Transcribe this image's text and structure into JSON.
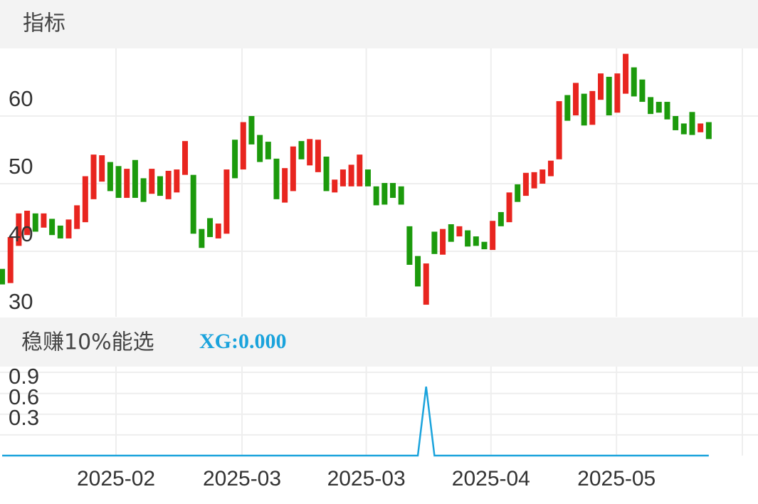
{
  "chart_data": [
    {
      "type": "candlestick",
      "title": "指标",
      "ylim": [
        30,
        70
      ],
      "yticks": [
        30,
        40,
        50,
        60
      ],
      "grid": true,
      "up_color": "#e8251f",
      "down_color": "#1c9a0c",
      "series": [
        {
          "open": [
            37.4,
            35.3,
            40.8,
            42.4,
            45.6,
            43.5,
            44.8,
            43.8,
            41.9,
            43.3,
            44.3,
            47.7,
            50.3,
            53.2,
            52.6,
            47.9,
            53.5,
            50.8,
            48.5,
            51.1,
            47.7,
            48.7,
            51.3,
            51.3,
            43.3,
            44.9,
            41.9,
            42.6,
            56.5,
            52.1,
            60.0,
            57.2,
            56.2,
            53.7,
            47.2,
            48.9,
            56.3,
            52.7,
            51.7,
            54.0,
            48.7,
            49.6,
            49.6,
            49.6,
            52.1,
            49.6,
            50.1,
            50.1,
            49.6,
            43.7,
            39.3,
            32.1,
            42.9,
            39.5,
            44.0,
            42.2,
            43.1,
            42.2,
            41.4,
            40.2,
            45.8,
            44.3,
            49.9,
            48.2,
            49.3,
            50.0,
            51.1,
            53.6,
            63.1,
            60.1,
            63.3,
            58.7,
            62.4,
            65.8,
            60.5,
            63.3,
            67.2,
            65.4,
            62.8,
            62.1,
            62.1,
            60.0,
            58.9,
            60.6,
            57.6,
            59.1
          ],
          "close": [
            35.1,
            42.1,
            45.6,
            46.0,
            42.9,
            45.6,
            42.4,
            41.9,
            44.7,
            46.8,
            51.1,
            54.3,
            54.2,
            48.9,
            47.9,
            52.2,
            47.9,
            47.3,
            52.2,
            48.2,
            51.9,
            52.1,
            56.3,
            42.6,
            40.5,
            42.1,
            44.1,
            52.1,
            50.8,
            59.1,
            55.8,
            53.2,
            53.6,
            47.7,
            52.3,
            55.5,
            53.6,
            56.6,
            56.5,
            48.9,
            50.6,
            52.1,
            52.8,
            54.3,
            49.6,
            46.8,
            46.9,
            47.9,
            46.9,
            38.0,
            34.8,
            38.2,
            39.6,
            43.3,
            41.4,
            43.7,
            40.7,
            40.8,
            40.3,
            44.5,
            43.7,
            48.7,
            47.3,
            51.6,
            51.7,
            52.1,
            53.4,
            62.2,
            59.3,
            64.9,
            58.6,
            63.7,
            66.3,
            60.1,
            66.3,
            69.2,
            62.9,
            62.1,
            60.3,
            60.5,
            59.5,
            57.9,
            57.3,
            57.2,
            58.9,
            56.6
          ]
        }
      ]
    },
    {
      "type": "line",
      "title": "稳赚10%能选",
      "ylim": [
        0,
        1.29
      ],
      "yticks": [
        0.3,
        0.6,
        0.9
      ],
      "grid": true,
      "xlim": [
        -0.26,
        90.92
      ],
      "xticks": [
        {
          "value": 13.7,
          "label": "2025-02"
        },
        {
          "value": 28.85,
          "label": "2025-03"
        },
        {
          "value": 43.8,
          "label": "2025-03"
        },
        {
          "value": 58.8,
          "label": "2025-04"
        },
        {
          "value": 73.9,
          "label": "2025-05"
        }
      ],
      "series": [
        {
          "name": "XG:0.000",
          "color": "#1aa3dc",
          "values": [
            0,
            0,
            0,
            0,
            0,
            0,
            0,
            0,
            0,
            0,
            0,
            0,
            0,
            0,
            0,
            0,
            0,
            0,
            0,
            0,
            0,
            0,
            0,
            0,
            0,
            0,
            0,
            0,
            0,
            0,
            0,
            0,
            0,
            0,
            0,
            0,
            0,
            0,
            0,
            0,
            0,
            0,
            0,
            0,
            0,
            0,
            0,
            0,
            0,
            0,
            0,
            1,
            0,
            0,
            0,
            0,
            0,
            0,
            0,
            0,
            0,
            0,
            0,
            0,
            0,
            0,
            0,
            0,
            0,
            0,
            0,
            0,
            0,
            0,
            0,
            0,
            0,
            0,
            0,
            0,
            0,
            0,
            0,
            0,
            0,
            0
          ]
        }
      ]
    }
  ]
}
